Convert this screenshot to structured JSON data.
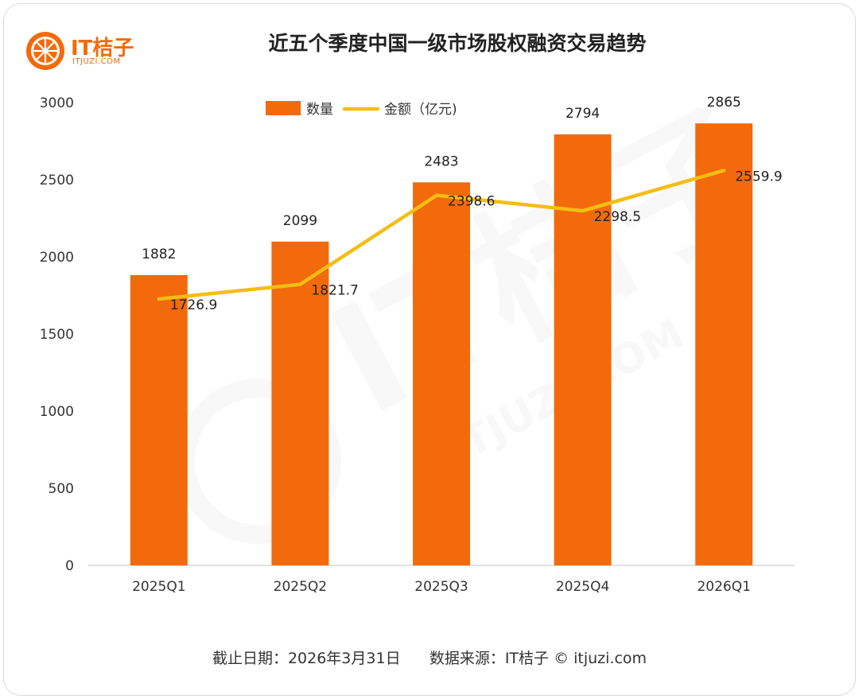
{
  "logo": {
    "text": "IT桔子",
    "subtext": "ITJUZI.COM",
    "watermark_text": "IT桔子",
    "watermark_sub": "ITJUZI.COM"
  },
  "colors": {
    "bar": "#f26a0b",
    "line": "#f5bd14",
    "brand": "#f46a0a"
  },
  "chart_data": {
    "type": "bar",
    "title": "近五个季度中国一级市场股权融资交易趋势",
    "categories": [
      "2025Q1",
      "2025Q2",
      "2025Q3",
      "2025Q4",
      "2026Q1"
    ],
    "ylim": [
      0,
      3000
    ],
    "yticks": [
      0,
      500,
      1000,
      1500,
      2000,
      2500,
      3000
    ],
    "legend_position": "top-center",
    "grid": false,
    "series": [
      {
        "name": "数量",
        "kind": "bar",
        "values": [
          1882,
          2099,
          2483,
          2794,
          2865
        ]
      },
      {
        "name": "金额（亿元)",
        "kind": "line",
        "values": [
          1726.9,
          1821.7,
          2398.6,
          2298.5,
          2559.9
        ]
      }
    ],
    "value_labels": {
      "bar": [
        "1882",
        "2099",
        "2483",
        "2794",
        "2865"
      ],
      "line": [
        "1726.9",
        "1821.7",
        "2398.6",
        "2298.5",
        "2559.9"
      ]
    }
  },
  "footer": {
    "cutoff": "截止日期：2026年3月31日",
    "source": "数据来源：IT桔子 © itjuzi.com"
  }
}
